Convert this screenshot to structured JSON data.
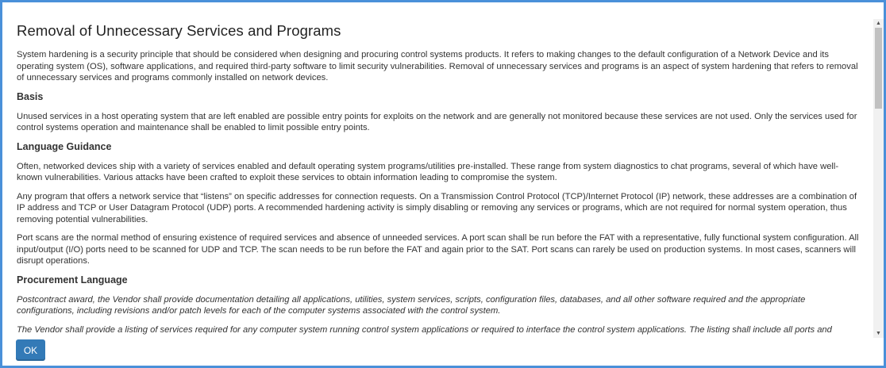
{
  "dialog": {
    "title": "Removal of Unnecessary Services and Programs",
    "intro": "System hardening is a security principle that should be considered when designing and procuring control systems products. It refers to making changes to the default configuration of a Network Device and its operating system (OS), software applications, and required third-party software to limit security vulnerabilities. Removal of unnecessary services and programs is an aspect of system hardening that refers to removal of unnecessary services and programs commonly installed on network devices.",
    "basis": {
      "heading": "Basis",
      "text": "Unused services in a host operating system that are left enabled are possible entry points for exploits on the network and are generally not monitored because these services are not used. Only the services used for control systems operation and maintenance shall be enabled to limit possible entry points."
    },
    "guidance": {
      "heading": "Language Guidance",
      "paragraphs": [
        "Often, networked devices ship with a variety of services enabled and default operating system programs/utilities pre-installed. These range from system diagnostics to chat programs, several of which have well-known vulnerabilities. Various attacks have been crafted to exploit these services to obtain information leading to compromise the system.",
        "Any program that offers a network service that “listens” on specific addresses for connection requests. On a Transmission Control Protocol (TCP)/Internet Protocol (IP) network, these addresses are a combination of IP address and TCP or User Datagram Protocol (UDP) ports. A recommended hardening activity is simply disabling or removing any services or programs, which are not required for normal system operation, thus removing potential vulnerabilities.",
        "Port scans are the normal method of ensuring existence of required services and absence of unneeded services. A port scan shall be run before the FAT with a representative, fully functional system configuration. All input/output (I/O) ports need to be scanned for UDP and TCP. The scan needs to be run before the FAT and again prior to the SAT. Port scans can rarely be used on production systems. In most cases, scanners will disrupt operations."
      ]
    },
    "procurement": {
      "heading": "Procurement Language",
      "paragraphs": [
        "Postcontract award, the Vendor shall provide documentation detailing all applications, utilities, system services, scripts, configuration files, databases, and all other software required and the appropriate configurations, including revisions and/or patch levels for each of the computer systems associated with the control system.",
        "The Vendor shall provide a listing of services required for any computer system running control system applications or required to interface the control system applications. The listing shall include all ports and services required for normal operation as well as any other ports and services required for emergency operation. The listing shall also include an explanation or cross reference to justify why each service is necessary for operation."
      ]
    },
    "ok_label": "OK"
  },
  "scrollbar": {
    "up_icon": "triangle-up",
    "down_icon": "triangle-down"
  }
}
